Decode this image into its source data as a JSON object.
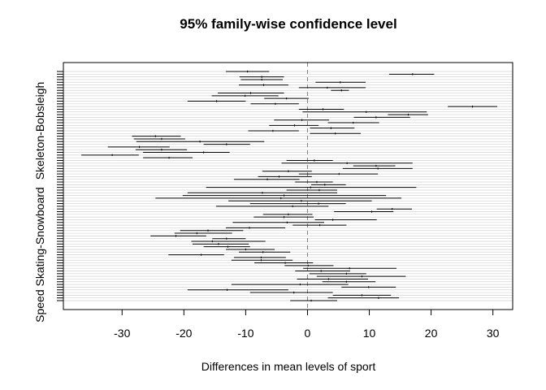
{
  "chart_data": {
    "type": "interval",
    "title": "95% family-wise confidence level",
    "xlabel": "Differences in mean levels of sport",
    "xlim": [
      -39.5,
      33.2
    ],
    "x_ticks": [
      -30,
      -20,
      -10,
      0,
      10,
      20,
      30
    ],
    "x_tick_labels": [
      "-30",
      "-20",
      "-10",
      "0",
      "10",
      "20",
      "30"
    ],
    "reference_line": 0,
    "y_tick_labels": [
      "Skeleton-Bobsleigh",
      "Speed Skating-Snowboard"
    ],
    "y_tick_label_rows": [
      22,
      68
    ],
    "grid": true,
    "colors": {
      "interval": "#000000",
      "grid": "#d3d3d3",
      "reference": "#808080"
    },
    "intervals": [
      {
        "diff": -9.7,
        "lwr": -13.2,
        "upr": -6.2
      },
      {
        "diff": 17.0,
        "lwr": 13.2,
        "upr": 20.5
      },
      {
        "diff": -7.4,
        "lwr": -11.0,
        "upr": -3.8
      },
      {
        "diff": -7.4,
        "lwr": -10.8,
        "upr": -4.0
      },
      {
        "diff": 5.3,
        "lwr": 1.3,
        "upr": 9.4
      },
      {
        "diff": -7.1,
        "lwr": -11.1,
        "upr": -3.1
      },
      {
        "diff": 3.2,
        "lwr": -1.4,
        "upr": 9.4
      },
      {
        "diff": 5.5,
        "lwr": 3.8,
        "upr": 6.7
      },
      {
        "diff": -9.2,
        "lwr": -14.5,
        "upr": -3.8
      },
      {
        "diff": -10.1,
        "lwr": -15.5,
        "upr": -4.7
      },
      {
        "diff": -3.4,
        "lwr": -7.0,
        "upr": 0.2
      },
      {
        "diff": -14.7,
        "lwr": -19.4,
        "upr": -10.0
      },
      {
        "diff": -5.2,
        "lwr": -9.2,
        "upr": -1.4
      },
      {
        "diff": 26.7,
        "lwr": 22.7,
        "upr": 30.7
      },
      {
        "diff": 2.5,
        "lwr": -1.4,
        "upr": 5.9
      },
      {
        "diff": 9.5,
        "lwr": -0.8,
        "upr": 19.3
      },
      {
        "diff": 16.3,
        "lwr": 13.0,
        "upr": 19.5
      },
      {
        "diff": 11.1,
        "lwr": 7.5,
        "upr": 16.6
      },
      {
        "diff": -0.9,
        "lwr": -5.4,
        "upr": 3.5
      },
      {
        "diff": 7.4,
        "lwr": 3.3,
        "upr": 11.6
      },
      {
        "diff": -2.1,
        "lwr": -6.2,
        "upr": 1.8
      },
      {
        "diff": 3.8,
        "lwr": 0.4,
        "upr": 7.6
      },
      {
        "diff": -5.6,
        "lwr": -9.6,
        "upr": -1.4
      },
      {
        "diff": 4.5,
        "lwr": 0.4,
        "upr": 8.6
      },
      {
        "diff": -24.6,
        "lwr": -28.4,
        "upr": -20.5
      },
      {
        "diff": -23.6,
        "lwr": -28.1,
        "upr": -19.8
      },
      {
        "diff": -17.4,
        "lwr": -27.7,
        "upr": -7.0
      },
      {
        "diff": -13.1,
        "lwr": -16.8,
        "upr": -9.3
      },
      {
        "diff": -27.2,
        "lwr": -32.3,
        "upr": -22.3
      },
      {
        "diff": -23.6,
        "lwr": -27.8,
        "upr": -19.5
      },
      {
        "diff": -16.8,
        "lwr": -26.6,
        "upr": -12.6
      },
      {
        "diff": -31.6,
        "lwr": -36.6,
        "upr": -27.3
      },
      {
        "diff": -22.4,
        "lwr": -26.6,
        "upr": -18.6
      },
      {
        "diff": 1.1,
        "lwr": -3.4,
        "upr": 4.1
      },
      {
        "diff": 6.4,
        "lwr": -4.2,
        "upr": 17.0
      },
      {
        "diff": 11.1,
        "lwr": 7.4,
        "upr": 14.2
      },
      {
        "diff": 11.4,
        "lwr": 5.7,
        "upr": 17.0
      },
      {
        "diff": -3.1,
        "lwr": -7.3,
        "upr": 0.7
      },
      {
        "diff": 5.1,
        "lwr": -1.4,
        "upr": 11.4
      },
      {
        "diff": -4.6,
        "lwr": -8.0,
        "upr": 0.7
      },
      {
        "diff": -6.5,
        "lwr": -11.9,
        "upr": -1.3
      },
      {
        "diff": 1.5,
        "lwr": -2.0,
        "upr": 4.1
      },
      {
        "diff": 2.8,
        "lwr": 0.6,
        "upr": 6.2
      },
      {
        "diff": 0.5,
        "lwr": -16.4,
        "upr": 17.6
      },
      {
        "diff": 1.9,
        "lwr": -3.4,
        "upr": 4.8
      },
      {
        "diff": -7.3,
        "lwr": -19.4,
        "upr": 4.8
      },
      {
        "diff": -3.8,
        "lwr": -20.2,
        "upr": 12.7
      },
      {
        "diff": -4.3,
        "lwr": -24.6,
        "upr": 15.2
      },
      {
        "diff": -1.0,
        "lwr": -12.8,
        "upr": 10.4
      },
      {
        "diff": 1.8,
        "lwr": -9.3,
        "upr": 6.2
      },
      {
        "diff": -2.4,
        "lwr": -14.8,
        "upr": 3.4
      },
      {
        "diff": 13.7,
        "lwr": 11.2,
        "upr": 16.9
      },
      {
        "diff": 10.4,
        "lwr": 4.3,
        "upr": 13.9
      },
      {
        "diff": -3.1,
        "lwr": -7.2,
        "upr": 0.8
      },
      {
        "diff": -3.8,
        "lwr": -8.7,
        "upr": 1.0
      },
      {
        "diff": 4.1,
        "lwr": 1.2,
        "upr": 11.2
      },
      {
        "diff": -3.3,
        "lwr": -12.1,
        "upr": 2.7
      },
      {
        "diff": 2.0,
        "lwr": -2.4,
        "upr": 6.3
      },
      {
        "diff": -9.4,
        "lwr": -13.2,
        "upr": -3.6
      },
      {
        "diff": -16.1,
        "lwr": -20.6,
        "upr": -10.4
      },
      {
        "diff": -17.9,
        "lwr": -21.5,
        "upr": -12.2
      },
      {
        "diff": -21.3,
        "lwr": -25.4,
        "upr": -16.4
      },
      {
        "diff": -13.1,
        "lwr": -15.4,
        "upr": -10.0
      },
      {
        "diff": -15.4,
        "lwr": -18.8,
        "upr": -6.8
      },
      {
        "diff": -14.4,
        "lwr": -18.6,
        "upr": -9.5
      },
      {
        "diff": -12.9,
        "lwr": -16.8,
        "upr": -9.3
      },
      {
        "diff": -10.0,
        "lwr": -13.2,
        "upr": -5.3
      },
      {
        "diff": -7.2,
        "lwr": -11.1,
        "upr": -2.8
      },
      {
        "diff": -17.2,
        "lwr": -22.5,
        "upr": -13.5
      },
      {
        "diff": -7.5,
        "lwr": -11.9,
        "upr": -3.5
      },
      {
        "diff": -7.5,
        "lwr": -12.3,
        "upr": -2.4
      },
      {
        "diff": -3.6,
        "lwr": -8.6,
        "upr": 0.9
      },
      {
        "diff": 0.1,
        "lwr": -3.7,
        "upr": 4.2
      },
      {
        "diff": 6.8,
        "lwr": -0.7,
        "upr": 14.4
      },
      {
        "diff": 2.2,
        "lwr": -2.0,
        "upr": 6.9
      },
      {
        "diff": 6.3,
        "lwr": 0.3,
        "upr": 9.5
      },
      {
        "diff": 8.8,
        "lwr": 1.5,
        "upr": 15.9
      },
      {
        "diff": 3.4,
        "lwr": -1.7,
        "upr": 9.8
      },
      {
        "diff": 6.3,
        "lwr": 2.4,
        "upr": 11.0
      },
      {
        "diff": -1.2,
        "lwr": -12.3,
        "upr": 6.6
      },
      {
        "diff": 9.9,
        "lwr": 5.5,
        "upr": 14.3
      },
      {
        "diff": -13.0,
        "lwr": -19.4,
        "upr": -3.1
      },
      {
        "diff": -2.2,
        "lwr": -9.3,
        "upr": 4.1
      },
      {
        "diff": 8.8,
        "lwr": 4.1,
        "upr": 13.5
      },
      {
        "diff": 11.5,
        "lwr": 3.3,
        "upr": 14.8
      },
      {
        "diff": 0.6,
        "lwr": -2.8,
        "upr": 4.8
      }
    ]
  }
}
